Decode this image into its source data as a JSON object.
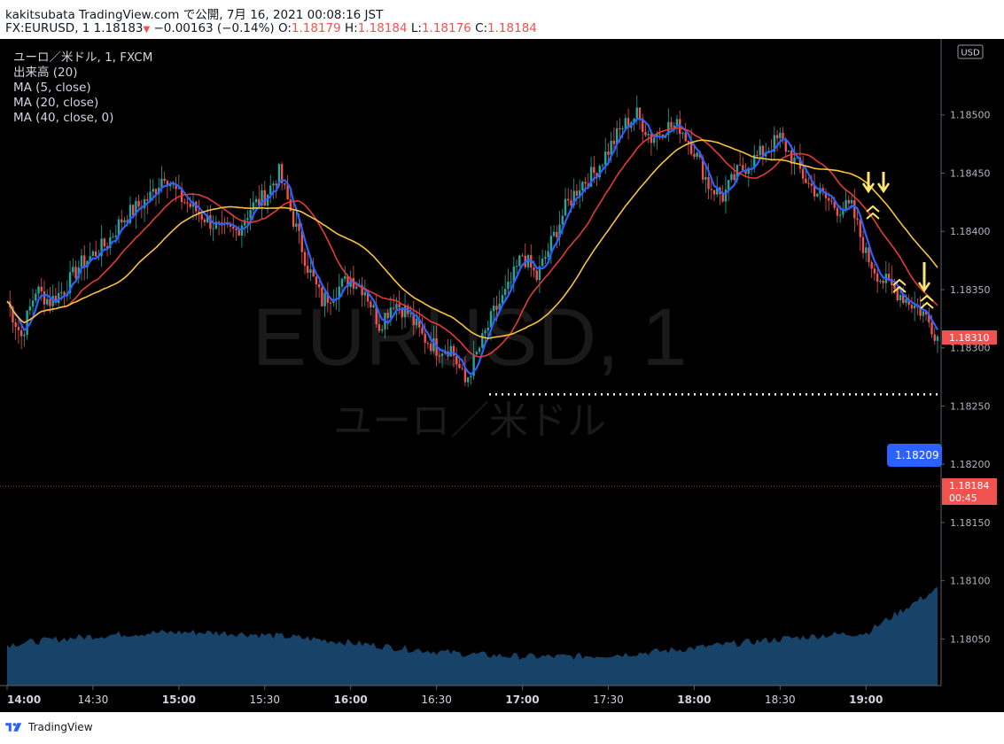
{
  "header": {
    "publisher_line": "kakitsubata TradingView.com で公開, 7月 16, 2021 00:08:16 JST",
    "symbol": "FX:EURUSD, 1",
    "last": "1.18183",
    "change_arrow": "▼",
    "change": "−0.00163 (−0.14%)",
    "o_label": "O:",
    "o_value": "1.18179",
    "h_label": "H:",
    "h_value": "1.18184",
    "l_label": "L:",
    "l_value": "1.18176",
    "c_label": "C:",
    "c_value": "1.18184"
  },
  "legend": {
    "symbol": "ユーロ／米ドル, 1, FXCM",
    "volume": "出来高 (20)",
    "ma5": "MA (5, close)",
    "ma20": "MA (20, close)",
    "ma40": "MA (40, close, 0)"
  },
  "watermark": {
    "line1": "EURUSD, 1",
    "line2": "ユーロ／米ドル"
  },
  "currency_badge": "USD",
  "price_tags": {
    "current_close": "1.18310",
    "blue_level": "1.18209",
    "last_price": "1.18184",
    "countdown": "00:45",
    "support_level": 1.1826
  },
  "footer": {
    "brand": "TradingView"
  },
  "colors": {
    "background": "#000000",
    "up": "#26a69a",
    "down": "#ef5350",
    "ma5": "#2962ff",
    "ma20": "#e53935",
    "ma40": "#f9c23c",
    "volume": "#1e5a8a",
    "signal": "#ffe66d"
  },
  "chart_data": {
    "type": "candlestick",
    "x_tick_labels": [
      "14:00",
      "14:30",
      "15:00",
      "15:30",
      "16:00",
      "16:30",
      "17:00",
      "17:30",
      "18:00",
      "18:30",
      "19:00"
    ],
    "y_tick_labels": [
      "1.18500",
      "1.18450",
      "1.18400",
      "1.18350",
      "1.18300",
      "1.18250",
      "1.18200",
      "1.18150",
      "1.18100",
      "1.18050"
    ],
    "ylim": [
      1.1801,
      1.1855
    ],
    "close_path": {
      "t": [
        0,
        5,
        10,
        15,
        20,
        25,
        30,
        35,
        40,
        45,
        50,
        55,
        60,
        65,
        70,
        75,
        80,
        85,
        90,
        95,
        100,
        105,
        110,
        115,
        120,
        125,
        130,
        135,
        140,
        145,
        150,
        155,
        160,
        165,
        170,
        175,
        180,
        185,
        190,
        195,
        200,
        205,
        210,
        215,
        220,
        225,
        230,
        235,
        240,
        245,
        250,
        255,
        260,
        265,
        270,
        275,
        280,
        285,
        290,
        295,
        300,
        305,
        310,
        315,
        320,
        325
      ],
      "close": [
        1.1834,
        1.1831,
        1.1835,
        1.1834,
        1.1835,
        1.1837,
        1.1838,
        1.1839,
        1.1841,
        1.1842,
        1.1843,
        1.1845,
        1.1843,
        1.1842,
        1.1841,
        1.184,
        1.184,
        1.1842,
        1.1843,
        1.1845,
        1.1841,
        1.1837,
        1.1834,
        1.1835,
        1.1836,
        1.1835,
        1.1832,
        1.1834,
        1.1833,
        1.1831,
        1.183,
        1.183,
        1.1827,
        1.183,
        1.1833,
        1.1835,
        1.1838,
        1.1836,
        1.1839,
        1.1842,
        1.1844,
        1.1845,
        1.1847,
        1.1849,
        1.185,
        1.1848,
        1.1849,
        1.1849,
        1.1847,
        1.1844,
        1.1843,
        1.1845,
        1.1846,
        1.1847,
        1.1848,
        1.1846,
        1.1844,
        1.1843,
        1.1842,
        1.1842,
        1.1838,
        1.1836,
        1.1835,
        1.1834,
        1.1833,
        1.1831
      ]
    },
    "series": [
      {
        "name": "MA (5, close)",
        "kind": "ma",
        "period": 5
      },
      {
        "name": "MA (20, close)",
        "kind": "ma",
        "period": 20
      },
      {
        "name": "MA (40, close, 0)",
        "kind": "ma",
        "period": 40
      },
      {
        "name": "出来高 (20)",
        "kind": "volume"
      }
    ],
    "grid": false
  }
}
